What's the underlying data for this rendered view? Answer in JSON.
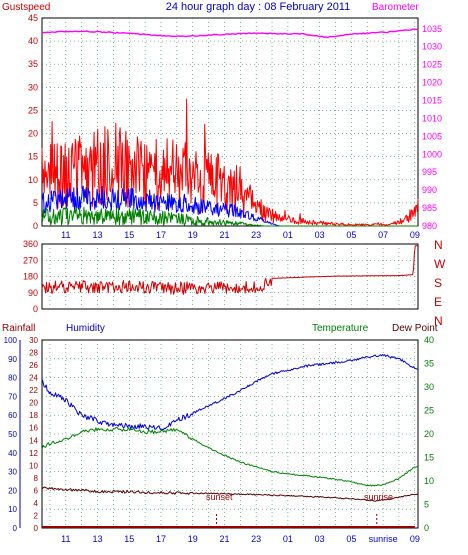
{
  "header": {
    "left_label": "Gustspeed",
    "title": "24 hour graph day : 08 February 2011",
    "right_label": "Barometer"
  },
  "middle_header": {
    "compass": [
      "N",
      "W",
      "S",
      "E",
      "N"
    ]
  },
  "bottom_header": {
    "rainfall": "Rainfall",
    "humidity": "Humidity",
    "temperature": "Temperature",
    "dewpoint": "Dew Point"
  },
  "annotations": {
    "sunset": "sunset",
    "sunrise": "sunrise"
  },
  "colors": {
    "title": "#0000cc",
    "left_axis": "#cc0000",
    "barometer": "#ff00ff",
    "gust": "#ff0000",
    "wind_avg": "#0000ff",
    "wind_low": "#008000",
    "direction": "#cc0000",
    "humidity": "#0000cc",
    "temperature": "#008000",
    "dewpoint": "#550000",
    "rainfall": "#990000",
    "grid": "#2e8b57"
  },
  "chart_data": [
    {
      "type": "line",
      "name": "wind-barometer",
      "x_ticks": [
        "11",
        "13",
        "15",
        "17",
        "19",
        "21",
        "23",
        "01",
        "03",
        "05",
        "07",
        "09"
      ],
      "left_axis": {
        "ticks": [
          0,
          5,
          10,
          15,
          20,
          25,
          30,
          35,
          40,
          45
        ],
        "range": [
          0,
          45
        ]
      },
      "right_axis": {
        "ticks": [
          980,
          985,
          990,
          995,
          1000,
          1005,
          1010,
          1015,
          1020,
          1025,
          1030,
          1035
        ],
        "range": [
          980,
          1038
        ]
      },
      "barometer": [
        [
          9.5,
          1034
        ],
        [
          12,
          1034.3
        ],
        [
          15,
          1033.7
        ],
        [
          18,
          1032.8
        ],
        [
          20,
          1033.2
        ],
        [
          23,
          1033.8
        ],
        [
          26,
          1033.5
        ],
        [
          27.5,
          1032.6
        ],
        [
          29,
          1033.5
        ],
        [
          31,
          1034
        ],
        [
          33,
          1034.8
        ]
      ],
      "gust_profile": [
        [
          9.5,
          10
        ],
        [
          12,
          12
        ],
        [
          14,
          13
        ],
        [
          16,
          12
        ],
        [
          18,
          11
        ],
        [
          20,
          10
        ],
        [
          22,
          8
        ],
        [
          23.5,
          3
        ],
        [
          24.5,
          1.5
        ],
        [
          26,
          1
        ],
        [
          27.5,
          0.5
        ],
        [
          29,
          0.3
        ],
        [
          31.5,
          0.3
        ],
        [
          32.5,
          1.5
        ],
        [
          33,
          3
        ]
      ],
      "wind_avg_profile": [
        [
          9.5,
          5
        ],
        [
          12,
          6
        ],
        [
          14,
          6
        ],
        [
          16,
          5.5
        ],
        [
          18,
          5
        ],
        [
          20,
          4
        ],
        [
          22,
          3
        ],
        [
          23.5,
          1
        ],
        [
          24.5,
          0
        ]
      ],
      "wind_low_profile": [
        [
          9.5,
          2
        ],
        [
          12,
          2.2
        ],
        [
          14,
          2
        ],
        [
          16,
          2
        ],
        [
          18,
          1.5
        ],
        [
          20,
          1
        ],
        [
          22,
          0.5
        ],
        [
          23.5,
          0
        ],
        [
          24.5,
          0
        ]
      ]
    },
    {
      "type": "line",
      "name": "wind-direction",
      "y_axis": {
        "ticks": [
          0,
          90,
          180,
          270,
          360
        ],
        "range": [
          0,
          360
        ]
      },
      "direction_profile": [
        [
          9.5,
          120
        ],
        [
          14,
          125
        ],
        [
          18,
          115
        ],
        [
          22,
          120
        ],
        [
          23.5,
          125
        ],
        [
          24,
          170
        ],
        [
          28,
          182
        ],
        [
          32,
          185
        ],
        [
          32.9,
          190
        ],
        [
          33,
          350
        ]
      ]
    },
    {
      "type": "line",
      "name": "temp-humidity-rain",
      "x_ticks": [
        "11",
        "13",
        "15",
        "17",
        "19",
        "21",
        "23",
        "01",
        "03",
        "05",
        "sunrise",
        "09"
      ],
      "humidity_axis": {
        "ticks": [
          0,
          10,
          20,
          30,
          40,
          50,
          60,
          70,
          80,
          90,
          100
        ],
        "range": [
          0,
          100
        ]
      },
      "rainfall_axis": {
        "ticks": [
          0,
          2,
          4,
          6,
          8,
          10,
          12,
          14,
          16,
          18,
          20,
          22,
          24,
          26,
          28,
          30
        ],
        "range": [
          0,
          30
        ]
      },
      "temperature_axis": {
        "ticks": [
          0,
          5,
          10,
          15,
          20,
          25,
          30,
          35,
          40
        ],
        "range": [
          0,
          40
        ]
      },
      "humidity": [
        [
          9.5,
          78
        ],
        [
          10,
          72
        ],
        [
          11,
          68
        ],
        [
          12,
          60
        ],
        [
          13,
          57
        ],
        [
          14,
          55
        ],
        [
          15,
          54
        ],
        [
          16,
          54
        ],
        [
          17,
          53
        ],
        [
          18,
          57
        ],
        [
          19,
          61
        ],
        [
          20,
          65
        ],
        [
          21,
          69
        ],
        [
          22,
          73
        ],
        [
          23,
          78
        ],
        [
          24,
          82
        ],
        [
          25,
          84
        ],
        [
          26,
          86
        ],
        [
          27,
          87
        ],
        [
          28,
          88
        ],
        [
          29,
          89
        ],
        [
          30,
          91
        ],
        [
          31,
          92
        ],
        [
          32,
          90
        ],
        [
          33,
          85
        ]
      ],
      "temperature": [
        [
          9.5,
          17
        ],
        [
          10,
          18
        ],
        [
          11,
          19
        ],
        [
          12,
          20.5
        ],
        [
          13,
          21
        ],
        [
          14,
          21
        ],
        [
          15,
          21
        ],
        [
          16,
          20.5
        ],
        [
          17,
          20.5
        ],
        [
          18,
          21
        ],
        [
          19,
          19
        ],
        [
          20,
          17
        ],
        [
          21,
          15.5
        ],
        [
          22,
          14
        ],
        [
          23,
          13
        ],
        [
          24,
          12
        ],
        [
          25,
          11.5
        ],
        [
          26,
          11.2
        ],
        [
          27,
          10.8
        ],
        [
          28,
          10.4
        ],
        [
          29,
          9.8
        ],
        [
          30,
          9
        ],
        [
          31,
          9.2
        ],
        [
          32,
          10.5
        ],
        [
          33,
          13
        ]
      ],
      "dewpoint": [
        [
          9.5,
          8.5
        ],
        [
          11,
          8.2
        ],
        [
          13,
          7.8
        ],
        [
          15,
          7.7
        ],
        [
          17,
          7.5
        ],
        [
          19,
          7.4
        ],
        [
          21,
          7.3
        ],
        [
          23,
          7.1
        ],
        [
          25,
          6.9
        ],
        [
          27,
          6.6
        ],
        [
          29,
          6.2
        ],
        [
          30.5,
          5.8
        ],
        [
          31.5,
          6.2
        ],
        [
          33,
          7.2
        ]
      ],
      "rainfall": [
        [
          9.5,
          0
        ],
        [
          33,
          0
        ]
      ]
    }
  ]
}
